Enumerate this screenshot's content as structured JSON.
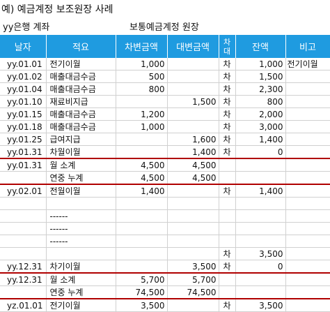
{
  "title": "예) 예금계정 보조원장 사례",
  "account_label": "yy은행 계좌",
  "ledger_label": "보통예금계정 원장",
  "columns": {
    "date": "날자",
    "desc": "적요",
    "debit": "차변금액",
    "credit": "대변금액",
    "dc": "차대",
    "balance": "잔액",
    "note": "비고"
  },
  "rows": [
    {
      "date": "yy.01.01",
      "desc": "전기이월",
      "debit": "1,000",
      "credit": "",
      "dc": "차",
      "balance": "1,000",
      "note": "전기이월"
    },
    {
      "date": "yy.01.02",
      "desc": "매출대금수금",
      "debit": "500",
      "credit": "",
      "dc": "차",
      "balance": "1,500",
      "note": ""
    },
    {
      "date": "yy.01.04",
      "desc": "매출대금수금",
      "debit": "800",
      "credit": "",
      "dc": "차",
      "balance": "2,300",
      "note": ""
    },
    {
      "date": "yy.01.10",
      "desc": "재료비지급",
      "debit": "",
      "credit": "1,500",
      "dc": "차",
      "balance": "800",
      "note": ""
    },
    {
      "date": "yy.01.15",
      "desc": "매출대금수금",
      "debit": "1,200",
      "credit": "",
      "dc": "차",
      "balance": "2,000",
      "note": ""
    },
    {
      "date": "yy.01.18",
      "desc": "매출대금수금",
      "debit": "1,000",
      "credit": "",
      "dc": "차",
      "balance": "3,000",
      "note": ""
    },
    {
      "date": "yy.01.25",
      "desc": "급여지급",
      "debit": "",
      "credit": "1,600",
      "dc": "차",
      "balance": "1,400",
      "note": ""
    },
    {
      "date": "yy.01.31",
      "desc": "차월이월",
      "debit": "",
      "credit": "1,400",
      "dc": "차",
      "balance": "0",
      "note": ""
    },
    {
      "date": "yy.01.31",
      "desc": "월 소계",
      "debit": "4,500",
      "credit": "4,500",
      "dc": "",
      "balance": "",
      "note": "",
      "sep": true
    },
    {
      "date": "",
      "desc": "연중 누계",
      "debit": "4,500",
      "credit": "4,500",
      "dc": "",
      "balance": "",
      "note": ""
    },
    {
      "date": "yy.02.01",
      "desc": "전월이월",
      "debit": "1,400",
      "credit": "",
      "dc": "차",
      "balance": "1,400",
      "note": "",
      "sep": true
    },
    {
      "date": "",
      "desc": "",
      "debit": "",
      "credit": "",
      "dc": "",
      "balance": "",
      "note": ""
    },
    {
      "date": "",
      "desc": "------",
      "debit": "",
      "credit": "",
      "dc": "",
      "balance": "",
      "note": ""
    },
    {
      "date": "",
      "desc": "------",
      "debit": "",
      "credit": "",
      "dc": "",
      "balance": "",
      "note": ""
    },
    {
      "date": "",
      "desc": "------",
      "debit": "",
      "credit": "",
      "dc": "",
      "balance": "",
      "note": ""
    },
    {
      "date": "",
      "desc": "",
      "debit": "",
      "credit": "",
      "dc": "차",
      "balance": "3,500",
      "note": ""
    },
    {
      "date": "yy.12.31",
      "desc": "차기이월",
      "debit": "",
      "credit": "3,500",
      "dc": "차",
      "balance": "0",
      "note": ""
    },
    {
      "date": "yy.12.31",
      "desc": "월 소계",
      "debit": "5,700",
      "credit": "5,700",
      "dc": "",
      "balance": "",
      "note": "",
      "sep": true
    },
    {
      "date": "",
      "desc": "연중 누계",
      "debit": "74,500",
      "credit": "74,500",
      "dc": "",
      "balance": "",
      "note": ""
    },
    {
      "date": "yz.01.01",
      "desc": "전기이월",
      "debit": "3,500",
      "credit": "",
      "dc": "차",
      "balance": "3,500",
      "note": "",
      "sep": true
    }
  ]
}
